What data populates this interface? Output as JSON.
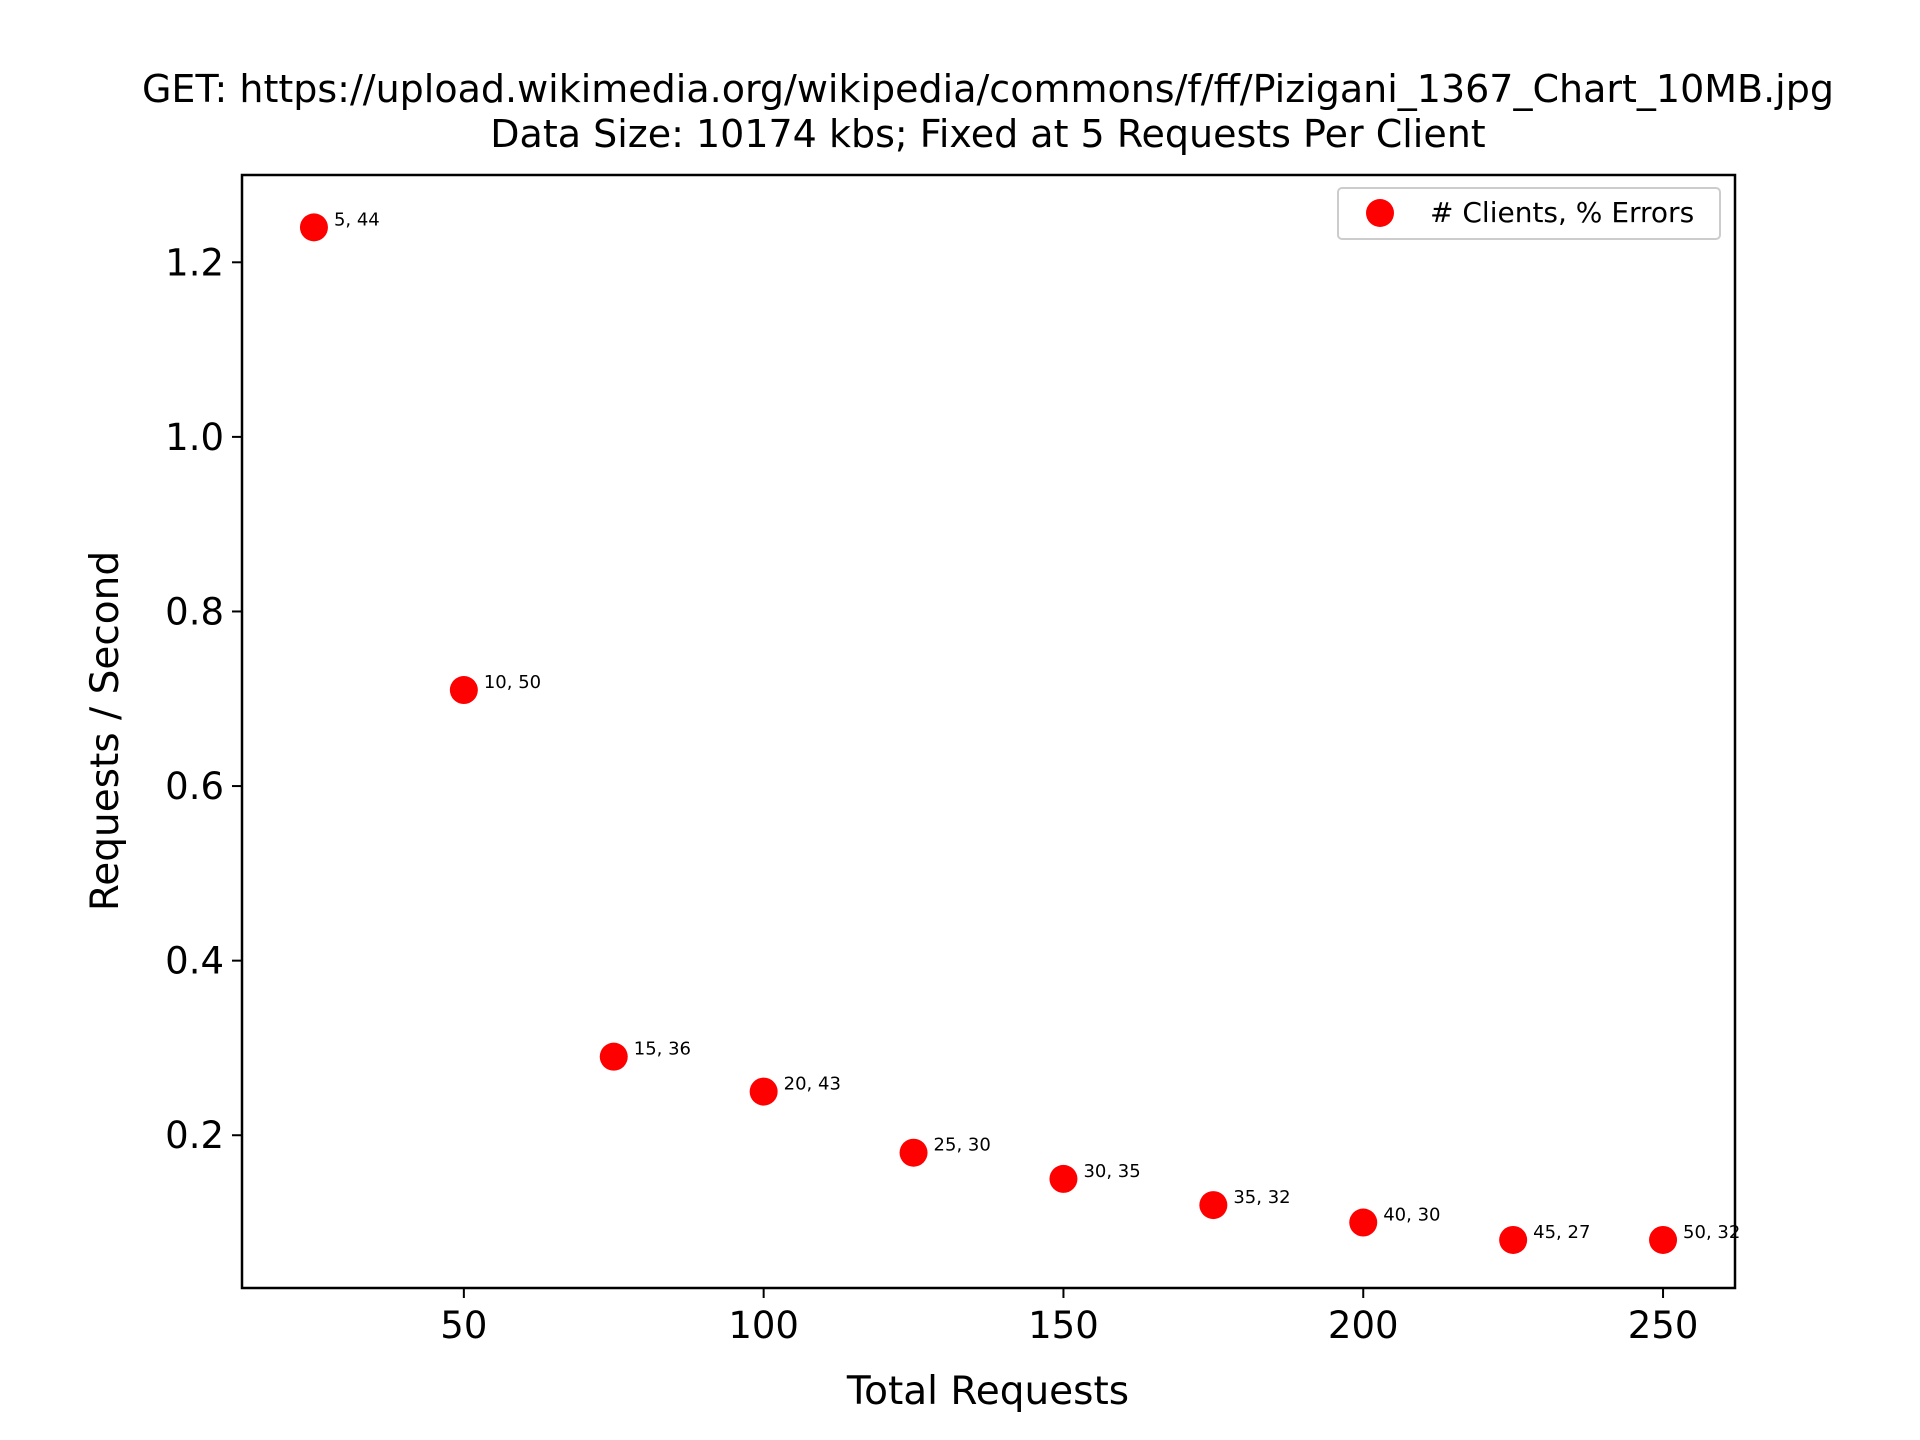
{
  "chart_data": {
    "type": "scatter",
    "title": "GET: https://upload.wikimedia.org/wikipedia/commons/f/ff/Pizigani_1367_Chart_10MB.jpg",
    "subtitle": "Data Size: 10174 kbs; Fixed at 5 Requests Per Client",
    "xlabel": "Total Requests",
    "ylabel": "Requests / Second",
    "xlim": [
      13,
      262
    ],
    "ylim": [
      0.025,
      1.3
    ],
    "xticks": [
      50,
      100,
      150,
      200,
      250
    ],
    "xtick_labels": [
      "50",
      "100",
      "150",
      "200",
      "250"
    ],
    "yticks": [
      0.2,
      0.4,
      0.6,
      0.8,
      1.0,
      1.2
    ],
    "ytick_labels": [
      "0.2",
      "0.4",
      "0.6",
      "0.8",
      "1.0",
      "1.2"
    ],
    "grid": false,
    "legend_position": "top-right",
    "series": [
      {
        "name": "# Clients, % Errors",
        "color": "#ff0000",
        "x": [
          25,
          50,
          75,
          100,
          125,
          150,
          175,
          200,
          225,
          250
        ],
        "y": [
          1.24,
          0.71,
          0.29,
          0.25,
          0.18,
          0.15,
          0.12,
          0.1,
          0.08,
          0.08
        ],
        "labels": [
          "5, 44",
          "10, 50",
          "15, 36",
          "20, 43",
          "25, 30",
          "30, 35",
          "35, 32",
          "40, 30",
          "45, 27",
          "50, 32"
        ]
      }
    ]
  }
}
